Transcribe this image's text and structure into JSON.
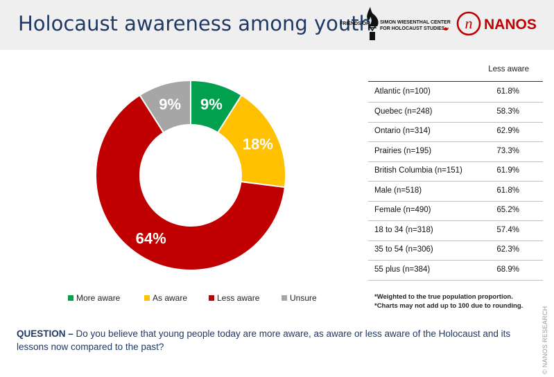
{
  "header": {
    "title": "Holocaust awareness among youth",
    "logo_fsw": {
      "friends_of": "FRIENDS OF",
      "line1": "SIMON WIESENTHAL CENTER",
      "line2": "FOR HOLOCAUST STUDIES"
    },
    "logo_nanos": {
      "text": "NANOS",
      "glyph": "n"
    }
  },
  "chart_data": {
    "type": "pie",
    "variant": "donut",
    "categories": [
      "More aware",
      "As aware",
      "Less aware",
      "Unsure"
    ],
    "values": [
      9,
      18,
      64,
      9
    ],
    "labels": [
      "9%",
      "18%",
      "64%",
      "9%"
    ],
    "colors": [
      "#00a04f",
      "#ffc000",
      "#c00000",
      "#a6a6a6"
    ],
    "legend_position": "bottom"
  },
  "table": {
    "column_header": "Less aware",
    "rows": [
      {
        "label": "Atlantic (n=100)",
        "value": "61.8%"
      },
      {
        "label": "Quebec (n=248)",
        "value": "58.3%"
      },
      {
        "label": "Ontario (n=314)",
        "value": "62.9%"
      },
      {
        "label": "Prairies (n=195)",
        "value": "73.3%"
      },
      {
        "label": "British Columbia (n=151)",
        "value": "61.9%"
      },
      {
        "label": "Male (n=518)",
        "value": "61.8%"
      },
      {
        "label": "Female (n=490)",
        "value": "65.2%"
      },
      {
        "label": "18 to 34 (n=318)",
        "value": "57.4%"
      },
      {
        "label": "35 to 54 (n=306)",
        "value": "62.3%"
      },
      {
        "label": "55 plus (n=384)",
        "value": "68.9%"
      }
    ]
  },
  "notes": [
    "*Weighted to the true population proportion.",
    "*Charts may not add up to 100 due to rounding."
  ],
  "question": {
    "label": "QUESTION –",
    "text": "Do you believe that young people today are more aware, as aware or less aware of the Holocaust and its lessons now compared to the past?"
  },
  "copyright": "© NANOS RESEARCH"
}
